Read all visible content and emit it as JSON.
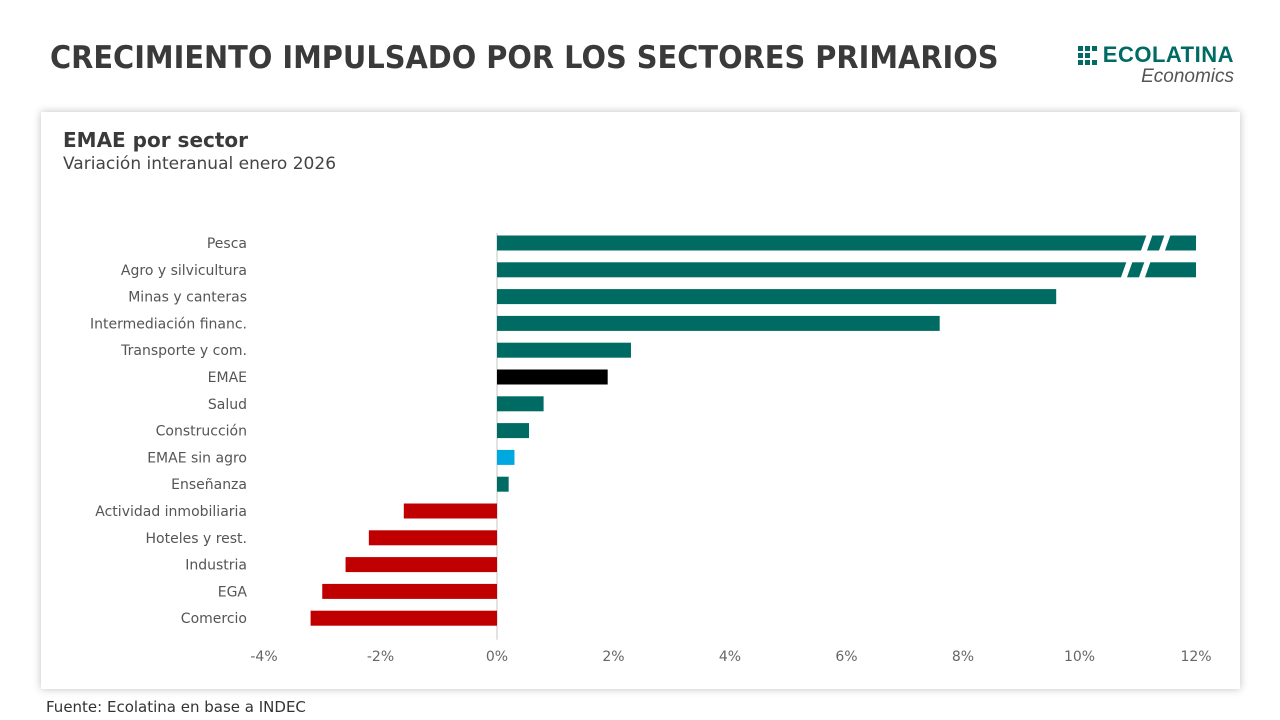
{
  "header": {
    "title": "CRECIMIENTO IMPULSADO POR LOS SECTORES PRIMARIOS",
    "logo_name": "ECOLATINA",
    "logo_sub": "Economics"
  },
  "source": "Fuente: Ecolatina en base a INDEC",
  "colors": {
    "positive": "#006b63",
    "negative": "#c00000",
    "emae": "#000000",
    "emae_sin_agro": "#00a8e0"
  },
  "chart_data": {
    "type": "bar",
    "orientation": "horizontal",
    "title": "EMAE por sector",
    "subtitle": "Variación interanual enero 2026",
    "xlabel": "",
    "ylabel": "",
    "xlim": [
      -4,
      12
    ],
    "xticks": [
      -4,
      -2,
      0,
      2,
      4,
      6,
      8,
      10,
      12
    ],
    "xtick_labels": [
      "-4%",
      "-2%",
      "0%",
      "2%",
      "4%",
      "6%",
      "8%",
      "10%",
      "12%"
    ],
    "categories": [
      "Pesca",
      "Agro y silvicultura",
      "Minas y canteras",
      "Intermediación financ.",
      "Transporte y com.",
      "EMAE",
      "Salud",
      "Construcción",
      "EMAE sin agro",
      "Enseñanza",
      "Actividad inmobiliaria",
      "Hoteles y rest.",
      "Industria",
      "EGA",
      "Comercio"
    ],
    "values": [
      12,
      12,
      9.6,
      7.6,
      2.3,
      1.9,
      0.8,
      0.55,
      0.3,
      0.2,
      -1.6,
      -2.2,
      -2.6,
      -3.0,
      -3.2
    ],
    "broken_axis": [
      true,
      true,
      false,
      false,
      false,
      false,
      false,
      false,
      false,
      false,
      false,
      false,
      false,
      false,
      false
    ],
    "bar_color_keys": [
      "positive",
      "positive",
      "positive",
      "positive",
      "positive",
      "emae",
      "positive",
      "positive",
      "emae_sin_agro",
      "positive",
      "negative",
      "negative",
      "negative",
      "negative",
      "negative"
    ],
    "grid": false,
    "legend": "none"
  }
}
